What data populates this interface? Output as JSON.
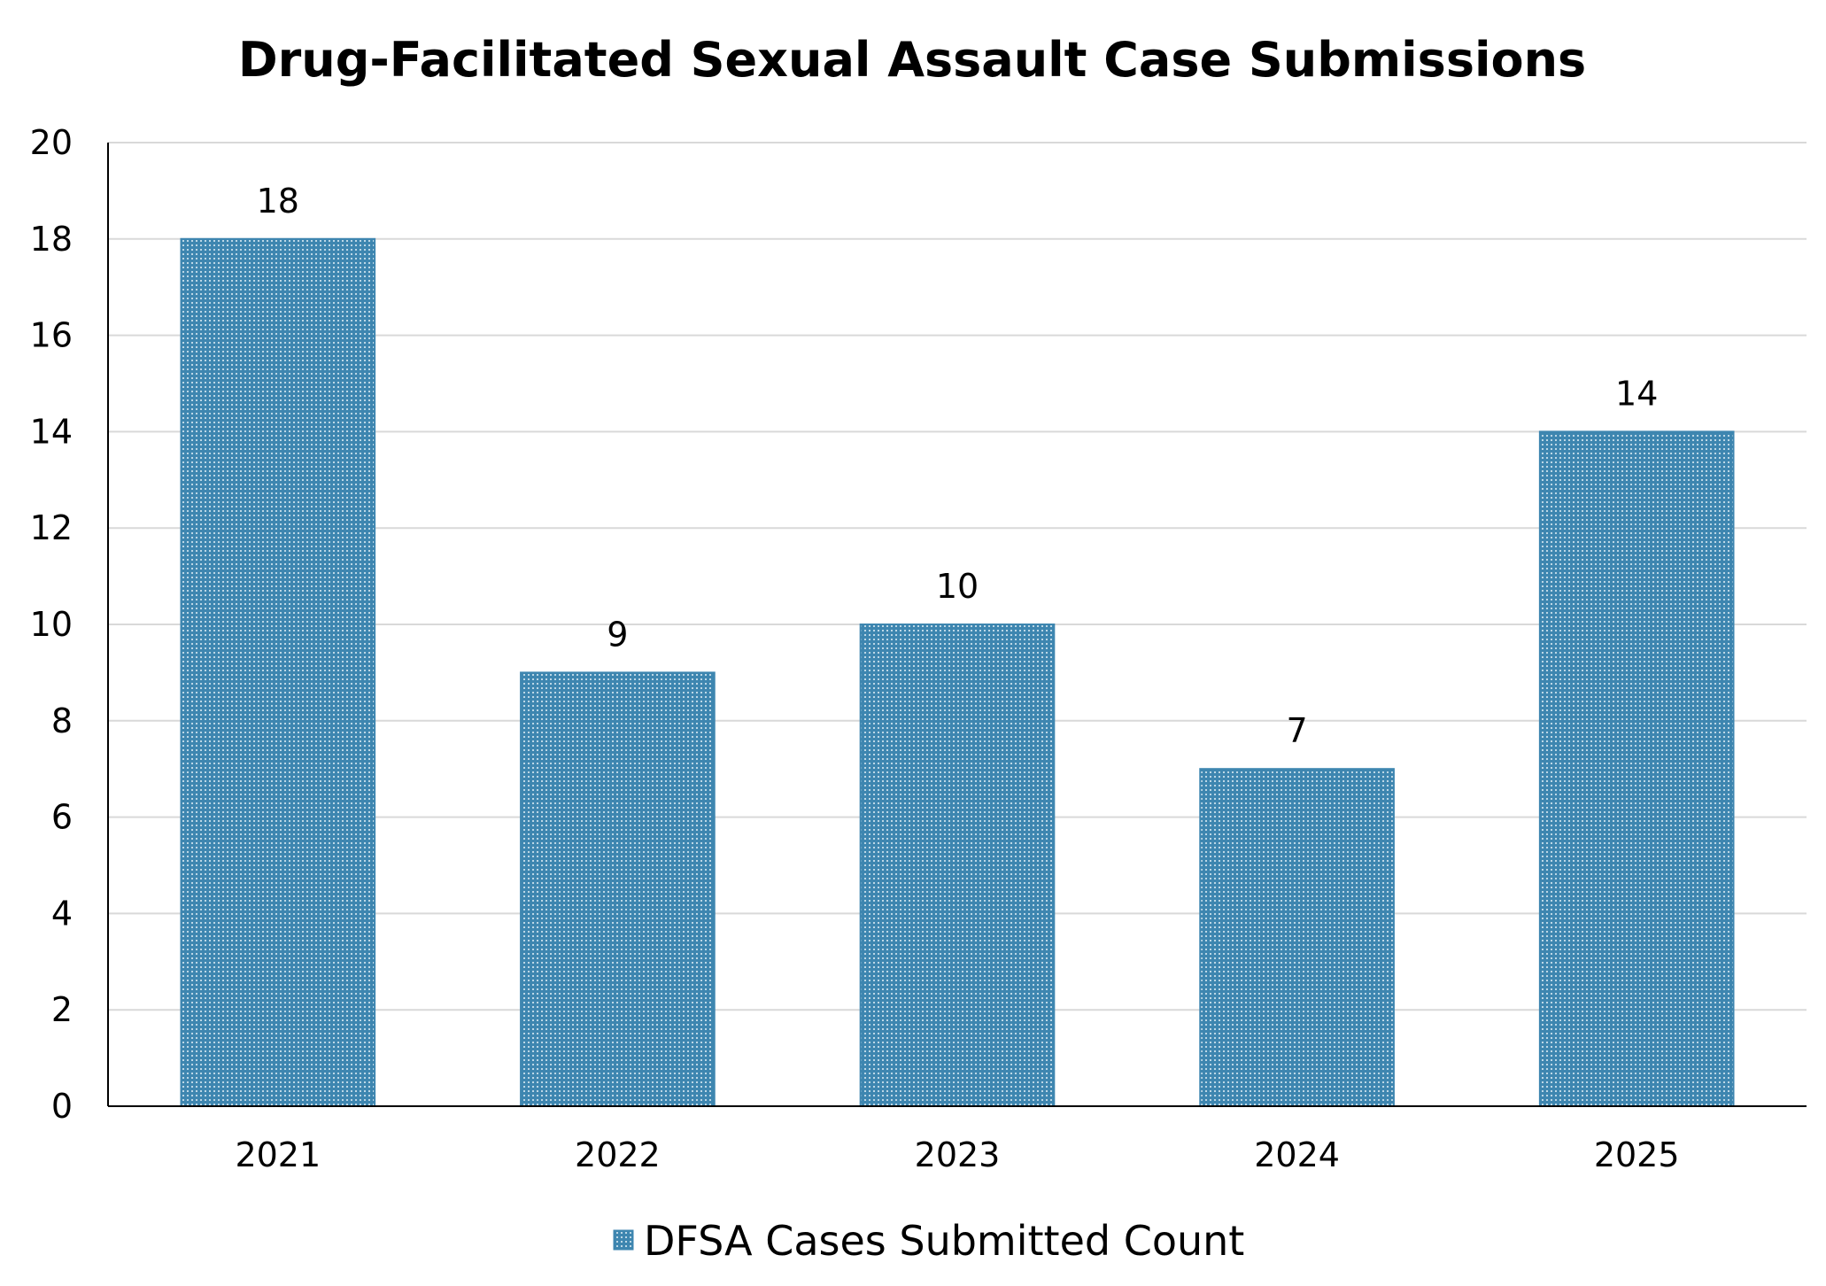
{
  "chart_data": {
    "type": "bar",
    "title": "Drug-Facilitated Sexual Assault Case Submissions",
    "xlabel": "",
    "ylabel": "",
    "categories": [
      "2021",
      "2022",
      "2023",
      "2024",
      "2025"
    ],
    "series": [
      {
        "name": "DFSA Cases Submitted Count",
        "values": [
          18,
          9,
          10,
          7,
          14
        ],
        "color": "#3E86B0"
      }
    ],
    "ylim": [
      0,
      20
    ],
    "yticks": [
      "0",
      "2",
      "4",
      "6",
      "8",
      "10",
      "12",
      "14",
      "16",
      "18",
      "20"
    ],
    "data_labels": [
      "18",
      "9",
      "10",
      "7",
      "14"
    ],
    "grid": true,
    "legend_position": "bottom"
  }
}
